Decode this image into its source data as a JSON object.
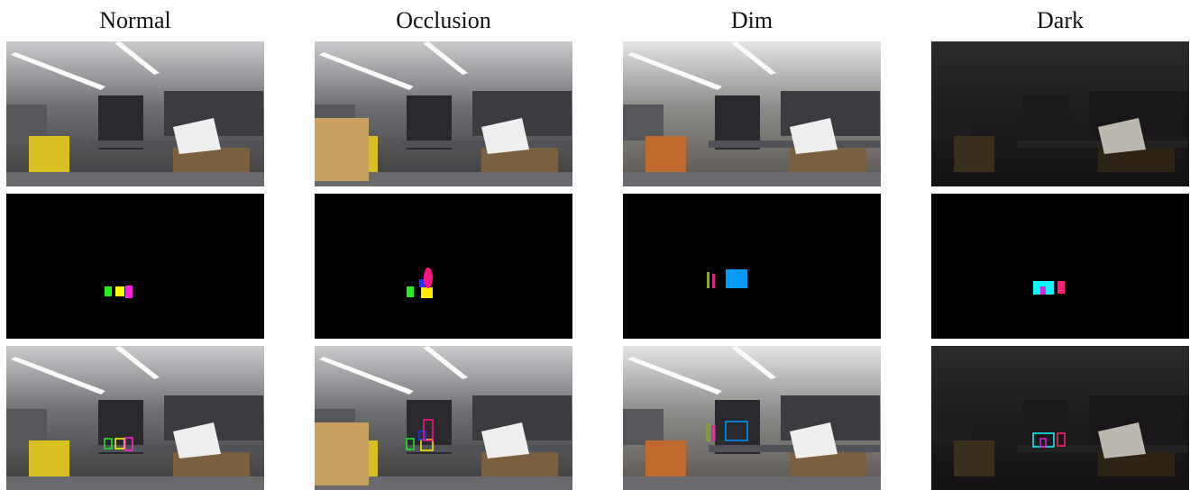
{
  "columns": [
    "Normal",
    "Occlusion",
    "Dim",
    "Dark"
  ]
}
